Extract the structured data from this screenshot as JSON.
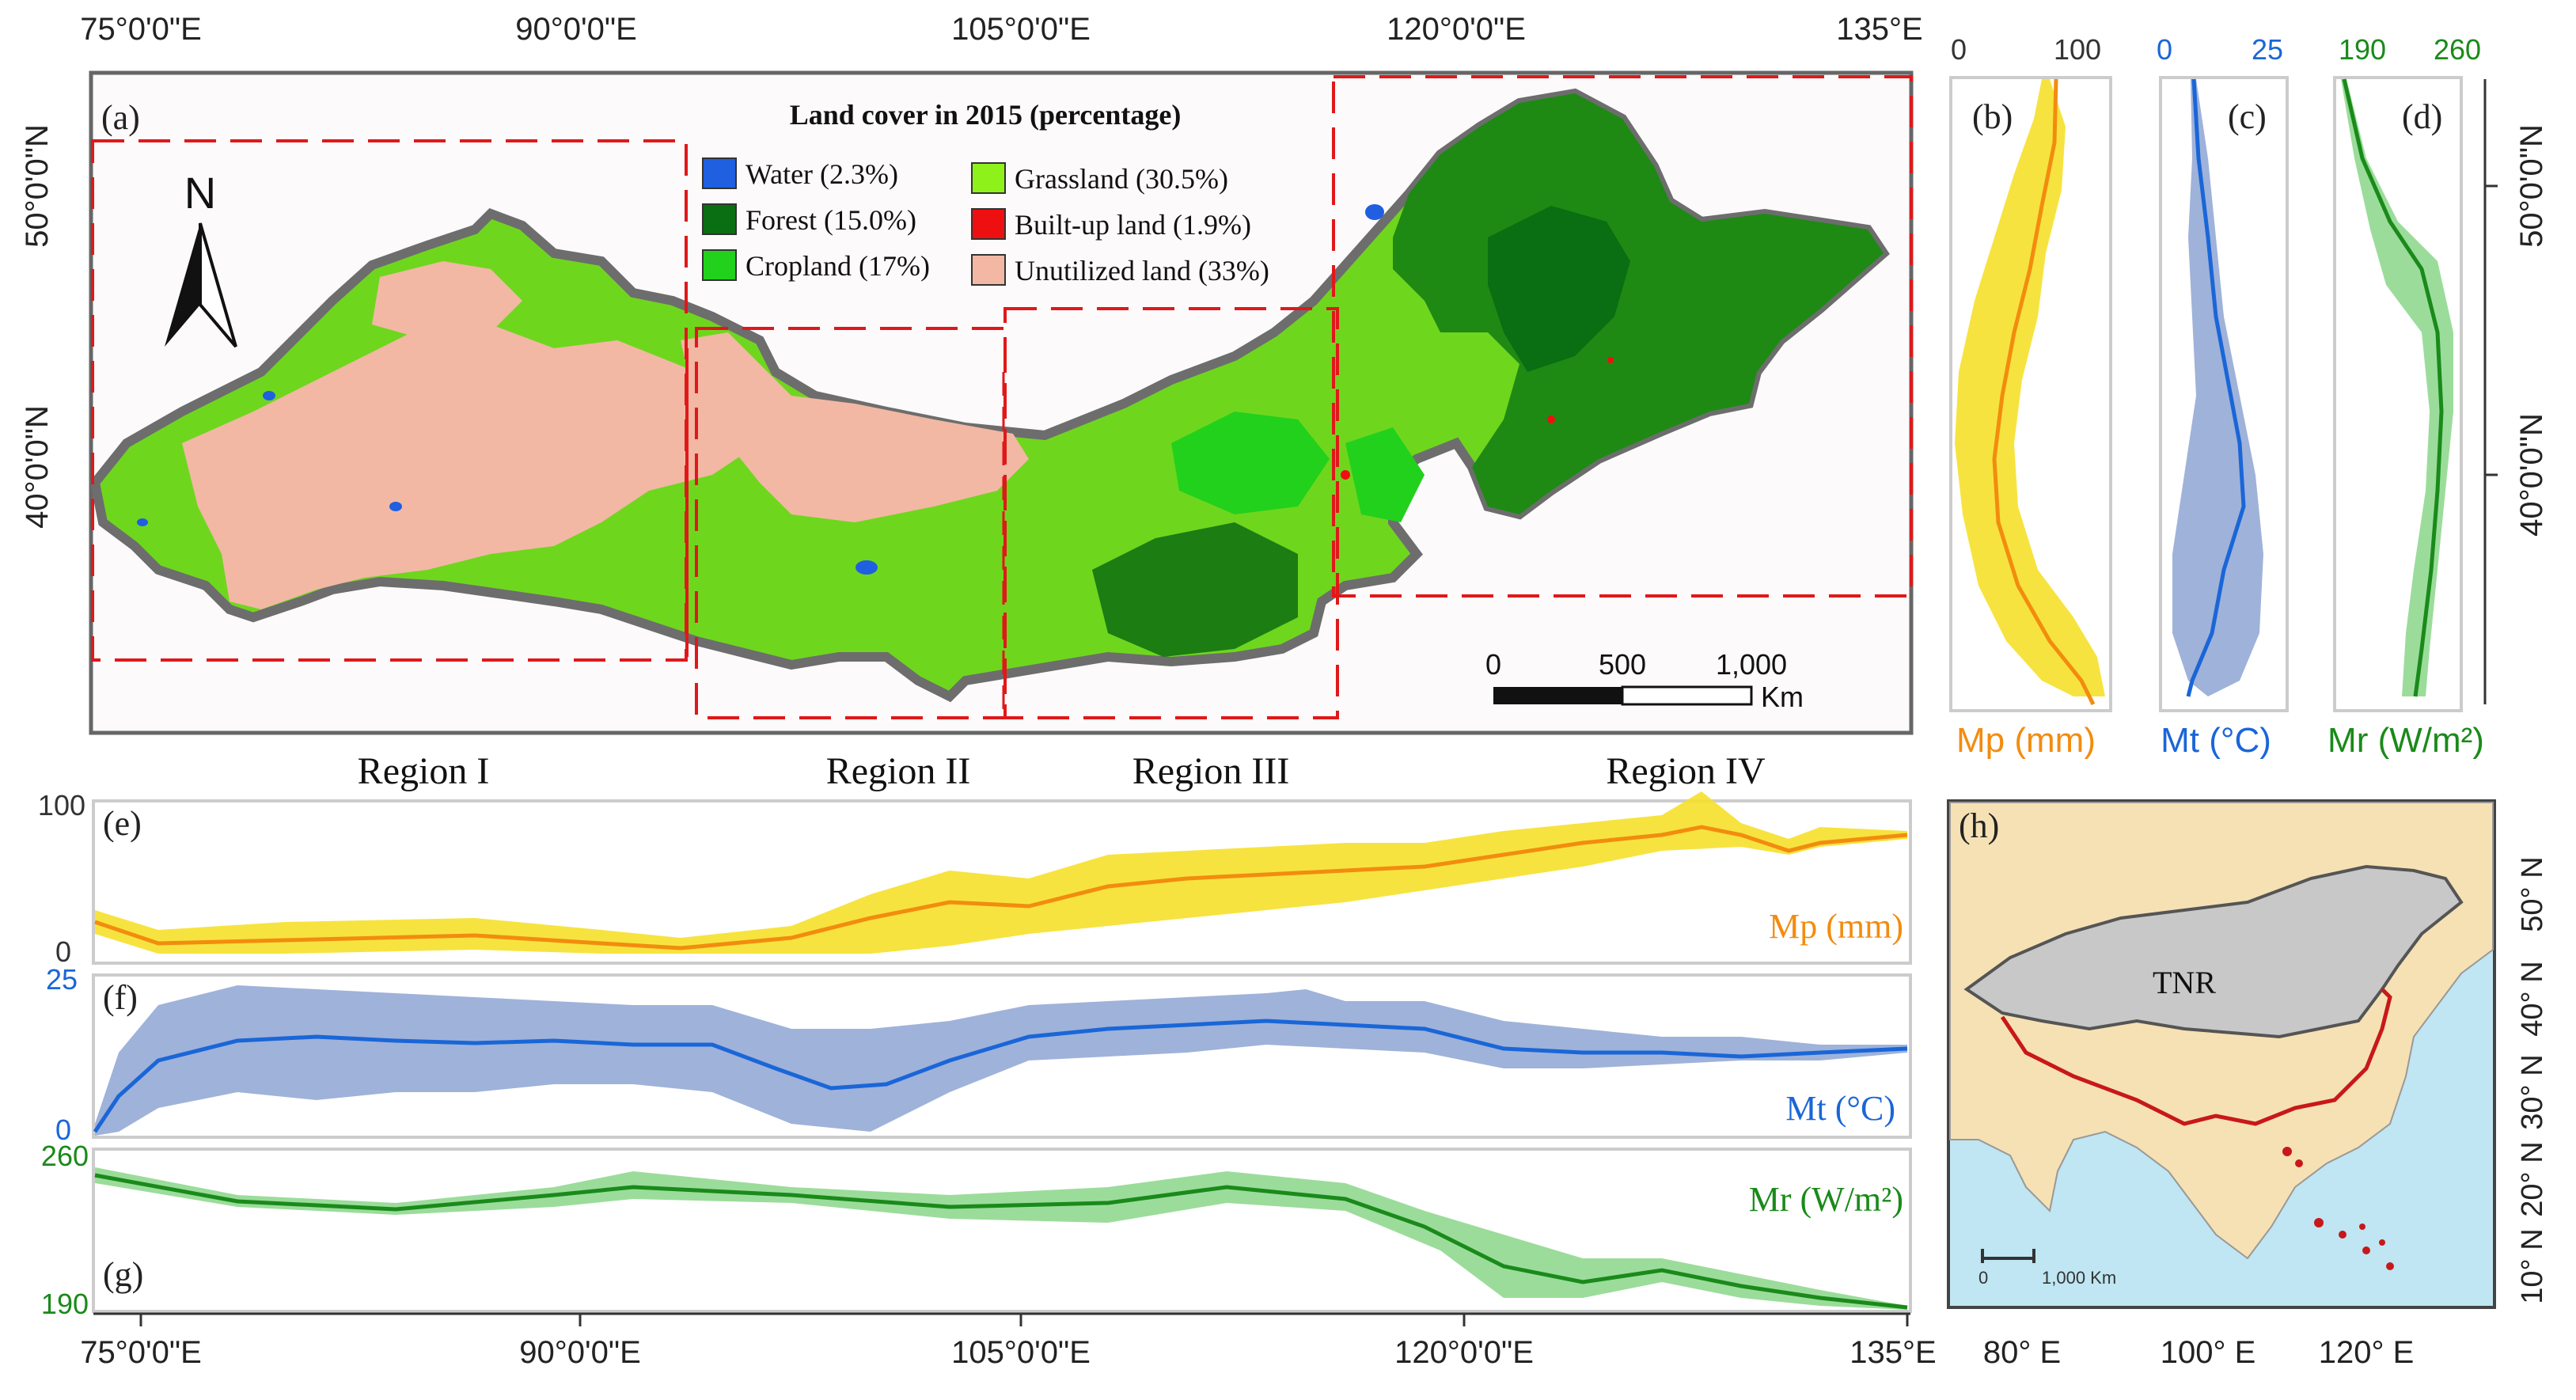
{
  "main_map": {
    "panel_label": "(a)",
    "top_axis": [
      "75°0'0\"E",
      "90°0'0\"E",
      "105°0'0\"E",
      "120°0'0\"E",
      "135°E"
    ],
    "left_axis": [
      "50°0'0\"N",
      "40°0'0\"N"
    ],
    "right_axis": [
      "50°0'0\"N",
      "40°0'0\"N"
    ],
    "north_arrow": "N",
    "legend_title": "Land cover in 2015 (percentage)",
    "legend": [
      {
        "label": "Water (2.3%)",
        "color": "#1f5fe0"
      },
      {
        "label": "Forest (15.0%)",
        "color": "#0a6e12"
      },
      {
        "label": "Cropland (17%)",
        "color": "#22d11c"
      },
      {
        "label": "Grassland (30.5%)",
        "color": "#8ef21a"
      },
      {
        "label": "Built-up land (1.9%)",
        "color": "#ee1010"
      },
      {
        "label": "Unutilized land (33%)",
        "color": "#f2b8a4"
      }
    ],
    "scale": {
      "ticks": [
        "0",
        "500",
        "1,000"
      ],
      "unit": "Km"
    },
    "regions": [
      "Region I",
      "Region II",
      "Region III",
      "Region IV"
    ]
  },
  "vertical_profiles": [
    {
      "label": "(b)",
      "scale_min": "0",
      "scale_max": "100",
      "name": "Mp (mm)",
      "color": "#f28c0f"
    },
    {
      "label": "(c)",
      "scale_min": "0",
      "scale_max": "25",
      "name": "Mt (°C)",
      "color": "#1a66d8"
    },
    {
      "label": "(d)",
      "scale_min": "190",
      "scale_max": "260",
      "name": "Mr (W/m²)",
      "color": "#1a8a1a"
    }
  ],
  "horizontal_profiles": [
    {
      "label": "(e)",
      "y_max": "100",
      "y_min": "0",
      "name": "Mp (mm)",
      "color": "#f28c0f"
    },
    {
      "label": "(f)",
      "y_max": "25",
      "y_min": "0",
      "name": "Mt (°C)",
      "color": "#1a66d8"
    },
    {
      "label": "(g)",
      "y_max": "260",
      "y_min": "190",
      "name": "Mr (W/m²)",
      "color": "#1a8a1a"
    }
  ],
  "bottom_axis": [
    "75°0'0\"E",
    "90°0'0\"E",
    "105°0'0\"E",
    "120°0'0\"E",
    "135°E"
  ],
  "inset_map": {
    "label": "(h)",
    "name": "TNR",
    "scale": "1,000 Km",
    "scale_zero": "0",
    "lon_ticks": [
      "80° E",
      "100° E",
      "120° E"
    ],
    "lat_ticks": [
      "50° N",
      "40° N",
      "30° N",
      "20° N",
      "10° N"
    ]
  }
}
